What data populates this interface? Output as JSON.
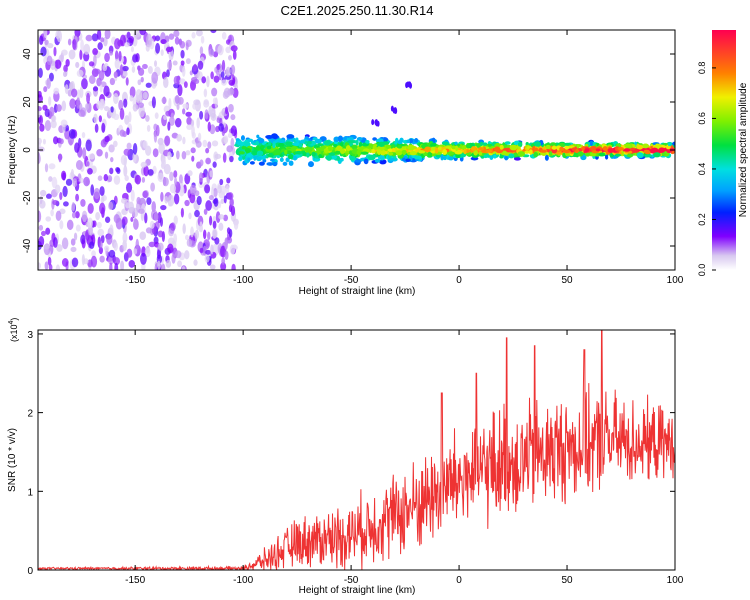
{
  "chart_data": [
    {
      "type": "heatmap",
      "title": "C2E1.2025.250.11.30.R14",
      "xlabel": "Height of straight line (km)",
      "ylabel": "Frequency (Hz)",
      "xlim": [
        -195,
        100
      ],
      "ylim": [
        -50,
        50
      ],
      "x_ticks": [
        -150,
        -100,
        -50,
        0,
        50,
        100
      ],
      "y_ticks": [
        -40,
        -20,
        0,
        20,
        40
      ],
      "noise_region_x": [
        -195,
        -103
      ],
      "band_center_hz": 0,
      "band_halfwidth_hz": [
        {
          "x": -103,
          "hz": 7
        },
        {
          "x": -50,
          "hz": 6
        },
        {
          "x": 0,
          "hz": 4
        },
        {
          "x": 100,
          "hz": 3
        }
      ],
      "streak": [
        {
          "x": -40,
          "hz": 10
        },
        {
          "x": -32,
          "hz": 16
        },
        {
          "x": -25,
          "hz": 26
        }
      ],
      "colorbar": {
        "label": "Normalized spectral amplitude",
        "ticks": [
          "0.0",
          "0.2",
          "0.4",
          "0.6",
          "0.8"
        ],
        "range": [
          0,
          0.95
        ]
      }
    },
    {
      "type": "line",
      "xlabel": "Height of straight line (km)",
      "ylabel": "SNR (10 * v/v)",
      "y_multiplier": "(x10",
      "y_multiplier_exp": "4",
      "y_multiplier_close": ")",
      "xlim": [
        -195,
        100
      ],
      "ylim": [
        0,
        3.05
      ],
      "x_ticks": [
        -150,
        -100,
        -50,
        0,
        50,
        100
      ],
      "y_ticks": [
        0,
        1,
        2,
        3
      ],
      "color": "#ee3333",
      "envelope": [
        {
          "x": -195,
          "mean": 0.02,
          "amp": 0.01
        },
        {
          "x": -100,
          "mean": 0.02,
          "amp": 0.02
        },
        {
          "x": -90,
          "mean": 0.12,
          "amp": 0.12
        },
        {
          "x": -75,
          "mean": 0.35,
          "amp": 0.25
        },
        {
          "x": -50,
          "mean": 0.45,
          "amp": 0.35
        },
        {
          "x": -25,
          "mean": 0.75,
          "amp": 0.45
        },
        {
          "x": 0,
          "mean": 1.15,
          "amp": 0.55
        },
        {
          "x": 20,
          "mean": 1.35,
          "amp": 0.6
        },
        {
          "x": 50,
          "mean": 1.55,
          "amp": 0.55
        },
        {
          "x": 70,
          "mean": 1.65,
          "amp": 0.5
        },
        {
          "x": 100,
          "mean": 1.6,
          "amp": 0.35
        }
      ],
      "peaks": [
        {
          "x": 22,
          "y": 2.95
        },
        {
          "x": 35,
          "y": 2.85
        },
        {
          "x": 66,
          "y": 3.05
        },
        {
          "x": 58,
          "y": 2.8
        },
        {
          "x": 8,
          "y": 2.5
        },
        {
          "x": -8,
          "y": 2.25
        }
      ]
    }
  ]
}
